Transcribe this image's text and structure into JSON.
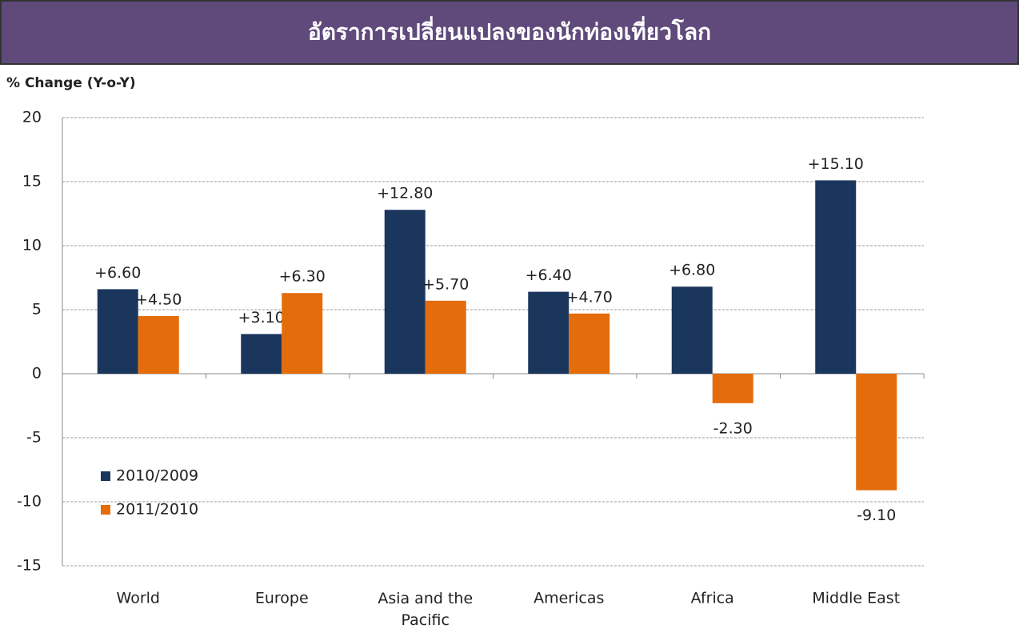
{
  "chart_data": {
    "type": "bar",
    "title": "อัตราการเปลี่ยนแปลงของนักท่องเที่ยวโลก",
    "y_label": "% Change (Y-o-Y)",
    "categories": [
      "World",
      "Europe",
      "Asia and the Pacific",
      "Americas",
      "Africa",
      "Middle East"
    ],
    "series": [
      {
        "name": "2010/2009",
        "color": "#1b365d",
        "values": [
          6.6,
          3.1,
          12.8,
          6.4,
          6.8,
          15.1
        ],
        "value_labels": [
          "+6.60",
          "+3.10",
          "+12.80",
          "+6.40",
          "+6.80",
          "+15.10"
        ]
      },
      {
        "name": "2011/2010",
        "color": "#e46c0a",
        "values": [
          4.5,
          6.3,
          5.7,
          4.7,
          -2.3,
          -9.1
        ],
        "value_labels": [
          "+4.50",
          "+6.30",
          "+5.70",
          "+4.70",
          "-2.30",
          "-9.10"
        ]
      }
    ],
    "ylim": [
      -15,
      20
    ],
    "yticks": [
      -15,
      -10,
      -5,
      0,
      5,
      10,
      15,
      20
    ],
    "grid": true,
    "legend": "lower left"
  }
}
